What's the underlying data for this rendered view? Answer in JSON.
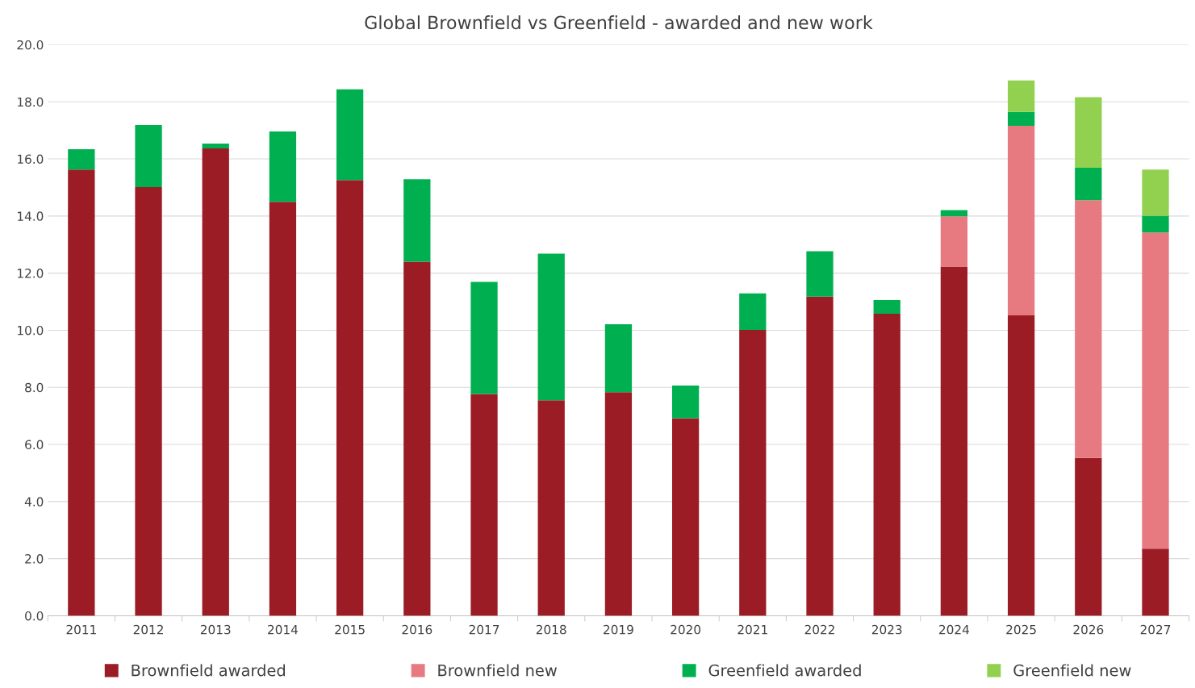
{
  "chart_data": {
    "type": "bar",
    "title": "Global Brownfield vs Greenfield - awarded and new work",
    "categories": [
      "2011",
      "2012",
      "2013",
      "2014",
      "2015",
      "2016",
      "2017",
      "2018",
      "2019",
      "2020",
      "2021",
      "2022",
      "2023",
      "2024",
      "2025",
      "2026",
      "2027"
    ],
    "stacked": true,
    "series": [
      {
        "name": "Brownfield awarded",
        "color": "#9b1c24",
        "values": [
          15.63,
          15.01,
          16.37,
          14.5,
          15.26,
          12.4,
          7.77,
          7.55,
          7.83,
          6.92,
          10.01,
          11.18,
          10.58,
          12.23,
          10.52,
          5.53,
          2.35
        ]
      },
      {
        "name": "Brownfield new",
        "color": "#e77a80",
        "values": [
          null,
          null,
          null,
          null,
          null,
          null,
          null,
          null,
          null,
          null,
          null,
          null,
          null,
          1.76,
          6.64,
          9.02,
          11.07
        ]
      },
      {
        "name": "Greenfield awarded",
        "color": "#00b050",
        "values": [
          0.71,
          2.18,
          0.17,
          2.46,
          3.18,
          2.89,
          3.92,
          5.13,
          2.38,
          1.14,
          1.28,
          1.59,
          0.48,
          0.22,
          0.49,
          1.14,
          0.59
        ]
      },
      {
        "name": "Greenfield new",
        "color": "#92d050",
        "values": [
          null,
          null,
          null,
          null,
          null,
          null,
          null,
          null,
          null,
          null,
          null,
          null,
          null,
          null,
          1.1,
          2.47,
          1.62
        ]
      }
    ],
    "ylim": [
      0,
      20
    ],
    "yticks": [
      {
        "value": 0,
        "label": "0.0"
      },
      {
        "value": 2,
        "label": "2.0"
      },
      {
        "value": 4,
        "label": "4.0"
      },
      {
        "value": 6,
        "label": "6.0"
      },
      {
        "value": 8,
        "label": "8.0"
      },
      {
        "value": 10,
        "label": "10.0"
      },
      {
        "value": 12,
        "label": "12.0"
      },
      {
        "value": 14,
        "label": "14.0"
      },
      {
        "value": 16,
        "label": "16.0"
      },
      {
        "value": 18,
        "label": "18.0"
      },
      {
        "value": 20,
        "label": "20.0"
      }
    ],
    "grid": "y",
    "legend": "bottom"
  }
}
